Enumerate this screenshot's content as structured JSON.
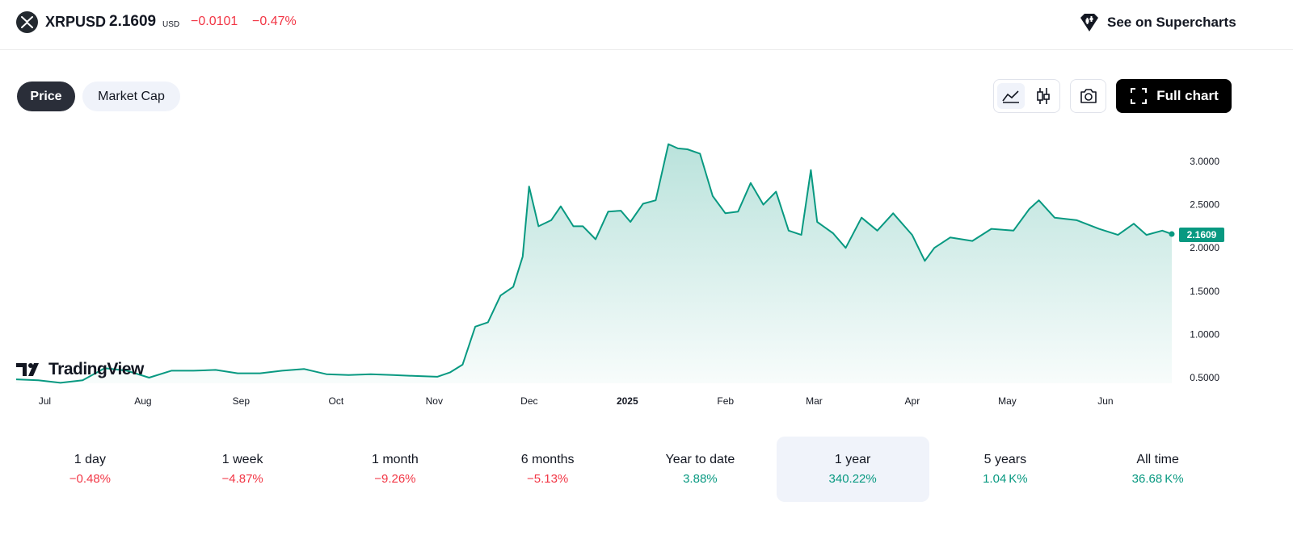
{
  "header": {
    "symbol": "XRPUSD",
    "price": "2.1609",
    "currency": "USD",
    "change": "−0.0101",
    "change_pct": "−0.47%",
    "supercharts_label": "See on Supercharts"
  },
  "tabs": [
    {
      "label": "Price",
      "active": true
    },
    {
      "label": "Market Cap",
      "active": false
    }
  ],
  "toolbar": {
    "area_icon": "area-chart-icon",
    "candle_icon": "candlestick-icon",
    "camera_icon": "camera-icon",
    "full_chart_label": "Full chart"
  },
  "brand": "TradingView",
  "colors": {
    "accent": "#089981",
    "negative": "#f23645"
  },
  "chart_data": {
    "type": "area",
    "x_tick_labels": [
      "Jul",
      "Aug",
      "Sep",
      "Oct",
      "Nov",
      "Dec",
      "2025",
      "Feb",
      "Mar",
      "Apr",
      "May",
      "Jun"
    ],
    "y_tick_labels": [
      "3.0000",
      "2.5000",
      "2.0000",
      "1.5000",
      "1.0000",
      "0.5000"
    ],
    "ylim": [
      0.5,
      3.0
    ],
    "last_value_label": "2.1609",
    "series": [
      {
        "x": [
          "2024-06-24",
          "2024-07-01",
          "2024-07-08",
          "2024-07-15",
          "2024-07-22",
          "2024-07-29",
          "2024-08-05",
          "2024-08-12",
          "2024-08-19",
          "2024-08-26",
          "2024-09-02",
          "2024-09-09",
          "2024-09-16",
          "2024-09-23",
          "2024-09-30",
          "2024-10-07",
          "2024-10-14",
          "2024-10-21",
          "2024-10-28",
          "2024-11-04",
          "2024-11-08",
          "2024-11-12",
          "2024-11-16",
          "2024-11-20",
          "2024-11-24",
          "2024-11-28",
          "2024-12-01",
          "2024-12-03",
          "2024-12-06",
          "2024-12-10",
          "2024-12-13",
          "2024-12-17",
          "2024-12-20",
          "2024-12-24",
          "2024-12-28",
          "2025-01-01",
          "2025-01-04",
          "2025-01-08",
          "2025-01-12",
          "2025-01-16",
          "2025-01-19",
          "2025-01-22",
          "2025-01-26",
          "2025-01-30",
          "2025-02-03",
          "2025-02-07",
          "2025-02-11",
          "2025-02-15",
          "2025-02-19",
          "2025-02-23",
          "2025-02-27",
          "2025-03-02",
          "2025-03-04",
          "2025-03-09",
          "2025-03-13",
          "2025-03-18",
          "2025-03-23",
          "2025-03-28",
          "2025-04-03",
          "2025-04-07",
          "2025-04-10",
          "2025-04-15",
          "2025-04-22",
          "2025-04-28",
          "2025-05-05",
          "2025-05-10",
          "2025-05-13",
          "2025-05-18",
          "2025-05-25",
          "2025-06-01",
          "2025-06-07",
          "2025-06-12",
          "2025-06-16",
          "2025-06-21",
          "2025-06-24"
        ],
        "values": [
          0.48,
          0.47,
          0.44,
          0.47,
          0.61,
          0.58,
          0.5,
          0.58,
          0.58,
          0.59,
          0.55,
          0.55,
          0.58,
          0.6,
          0.54,
          0.53,
          0.54,
          0.53,
          0.52,
          0.51,
          0.56,
          0.65,
          1.09,
          1.14,
          1.45,
          1.55,
          1.9,
          2.71,
          2.25,
          2.32,
          2.48,
          2.25,
          2.25,
          2.1,
          2.42,
          2.43,
          2.3,
          2.51,
          2.55,
          3.2,
          3.15,
          3.14,
          3.09,
          2.6,
          2.4,
          2.42,
          2.75,
          2.5,
          2.65,
          2.2,
          2.15,
          2.9,
          2.3,
          2.17,
          2.0,
          2.35,
          2.2,
          2.4,
          2.15,
          1.85,
          2.0,
          2.12,
          2.08,
          2.22,
          2.2,
          2.45,
          2.55,
          2.35,
          2.32,
          2.22,
          2.15,
          2.28,
          2.15,
          2.2,
          2.16
        ]
      }
    ]
  },
  "periods": [
    {
      "label": "1 day",
      "value": "−0.48%",
      "dir": "neg",
      "selected": false
    },
    {
      "label": "1 week",
      "value": "−4.87%",
      "dir": "neg",
      "selected": false
    },
    {
      "label": "1 month",
      "value": "−9.26%",
      "dir": "neg",
      "selected": false
    },
    {
      "label": "6 months",
      "value": "−5.13%",
      "dir": "neg",
      "selected": false
    },
    {
      "label": "Year to date",
      "value": "3.88%",
      "dir": "pos",
      "selected": false
    },
    {
      "label": "1 year",
      "value": "340.22%",
      "dir": "pos",
      "selected": true
    },
    {
      "label": "5 years",
      "value": "1.04 K%",
      "dir": "pos",
      "selected": false
    },
    {
      "label": "All time",
      "value": "36.68 K%",
      "dir": "pos",
      "selected": false
    }
  ]
}
